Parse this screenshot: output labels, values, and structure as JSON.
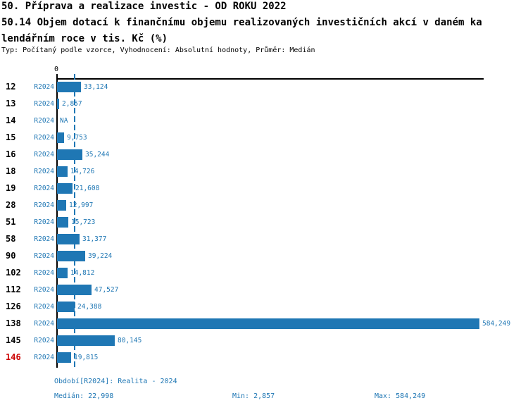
{
  "header": {
    "title_line1": "50. Příprava a realizace investic - OD ROKU 2022",
    "title_line2": "50.14 Objem dotací k finančnímu objemu realizovaných investičních akcí v daném ka",
    "title_line3": "lendářním roce v tis. Kč (%)",
    "subtitle": "Typ: Počítaný podle vzorce, Vyhodnocení: Absolutní hodnoty, Průměr: Medián"
  },
  "chart_data": {
    "type": "bar",
    "orientation": "horizontal",
    "title": "50.14 Objem dotací k finančnímu objemu realizovaných investičních akcí v daném kalendářním roce v tis. Kč (%)",
    "series_name": "R2024",
    "axis": {
      "zero_label": "0",
      "min": 0
    },
    "median_value": 22998,
    "colors": {
      "bar": "#1f77b4",
      "blue_text": "#1f77b4",
      "highlight": "#cc0000",
      "axis": "#000000"
    },
    "rows": [
      {
        "id": "12",
        "period": "R2024",
        "value": 33124,
        "label": "33,124",
        "highlight": false
      },
      {
        "id": "13",
        "period": "R2024",
        "value": 2857,
        "label": "2,857",
        "highlight": false
      },
      {
        "id": "14",
        "period": "R2024",
        "value": null,
        "label": "NA",
        "highlight": false
      },
      {
        "id": "15",
        "period": "R2024",
        "value": 9753,
        "label": "9,753",
        "highlight": false
      },
      {
        "id": "16",
        "period": "R2024",
        "value": 35244,
        "label": "35,244",
        "highlight": false
      },
      {
        "id": "18",
        "period": "R2024",
        "value": 14726,
        "label": "14,726",
        "highlight": false
      },
      {
        "id": "19",
        "period": "R2024",
        "value": 21608,
        "label": "21,608",
        "highlight": false
      },
      {
        "id": "28",
        "period": "R2024",
        "value": 12997,
        "label": "12,997",
        "highlight": false
      },
      {
        "id": "51",
        "period": "R2024",
        "value": 15723,
        "label": "15,723",
        "highlight": false
      },
      {
        "id": "58",
        "period": "R2024",
        "value": 31377,
        "label": "31,377",
        "highlight": false
      },
      {
        "id": "90",
        "period": "R2024",
        "value": 39224,
        "label": "39,224",
        "highlight": false
      },
      {
        "id": "102",
        "period": "R2024",
        "value": 14812,
        "label": "14,812",
        "highlight": false
      },
      {
        "id": "112",
        "period": "R2024",
        "value": 47527,
        "label": "47,527",
        "highlight": false
      },
      {
        "id": "126",
        "period": "R2024",
        "value": 24388,
        "label": "24,388",
        "highlight": false
      },
      {
        "id": "138",
        "period": "R2024",
        "value": 584249,
        "label": "584,249",
        "highlight": false
      },
      {
        "id": "145",
        "period": "R2024",
        "value": 80145,
        "label": "80,145",
        "highlight": false
      },
      {
        "id": "146",
        "period": "R2024",
        "value": 19815,
        "label": "19,815",
        "highlight": true
      }
    ]
  },
  "footer": {
    "period_line": "Období[R2024]: Realita - 2024",
    "median": "Medián: 22,998",
    "min": "Min: 2,857",
    "max": "Max: 584,249"
  }
}
